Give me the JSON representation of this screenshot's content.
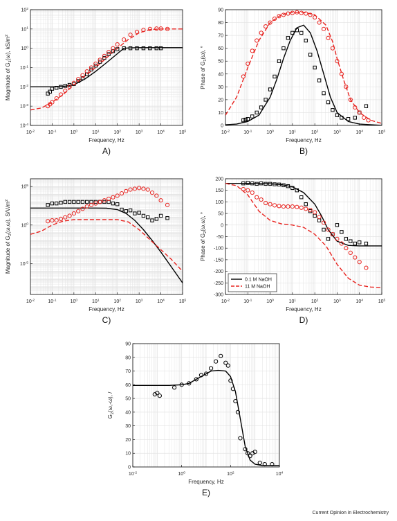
{
  "colors": {
    "black": "#000000",
    "red": "#e8231f",
    "grid": "#e3e3e3",
    "frame": "#000000"
  },
  "credit": "Current Opinion in Electrochemistry",
  "chart_data": [
    {
      "id": "A",
      "panel_label": "A)",
      "type": "scatter",
      "xlabel": "Frequency, Hz",
      "ylabel": "Magnitude of G_1(ω), kS/m^2",
      "xscale": "log",
      "yscale": "log",
      "xlim": [
        -2,
        5
      ],
      "ylim": [
        -4,
        2
      ],
      "xticks": [
        "10^-2",
        "10^-1",
        "10^0",
        "10^1",
        "10^2",
        "10^3",
        "10^4",
        "10^5"
      ],
      "yticks": [
        "10^-4",
        "10^-3",
        "10^-2",
        "10^-1",
        "10^0",
        "10^1",
        "10^2"
      ],
      "series": [
        {
          "role": "fit",
          "color": "black",
          "dash": "solid",
          "x": [
            -2,
            -1,
            -0.5,
            0,
            0.5,
            1,
            1.5,
            2,
            2.3,
            2.6,
            3,
            4,
            5
          ],
          "y": [
            -2,
            -2,
            -1.98,
            -1.9,
            -1.6,
            -1.2,
            -0.75,
            -0.28,
            0,
            0.02,
            0.03,
            0.03,
            0.03
          ]
        },
        {
          "role": "fit",
          "color": "red",
          "dash": "dashed",
          "x": [
            -2,
            -1.5,
            -1,
            -0.5,
            0,
            0.5,
            1,
            1.5,
            2,
            2.5,
            3,
            3.5,
            4,
            4.5,
            5
          ],
          "y": [
            -3.2,
            -3.1,
            -2.8,
            -2.4,
            -1.9,
            -1.45,
            -1,
            -0.5,
            0,
            0.45,
            0.8,
            0.97,
            1,
            1,
            1
          ]
        },
        {
          "role": "data",
          "color": "black",
          "marker": "square",
          "x": [
            -1.2,
            -1.1,
            -1,
            -0.8,
            -0.6,
            -0.4,
            -0.2,
            0,
            0.2,
            0.4,
            0.6,
            0.8,
            1,
            1.2,
            1.4,
            1.6,
            1.8,
            2,
            2.3,
            2.6,
            2.9,
            3.2,
            3.5,
            3.8,
            4
          ],
          "y": [
            -2.35,
            -2.25,
            -2.1,
            -2.05,
            -2,
            -1.95,
            -1.9,
            -1.85,
            -1.7,
            -1.55,
            -1.35,
            -1.1,
            -0.9,
            -0.7,
            -0.5,
            -0.3,
            -0.15,
            -0.05,
            0,
            0,
            0,
            0,
            0,
            0,
            0
          ]
        },
        {
          "role": "data",
          "color": "red",
          "marker": "circle",
          "x": [
            -1.2,
            -1.1,
            -1,
            -0.8,
            -0.6,
            -0.4,
            -0.2,
            0,
            0.2,
            0.4,
            0.6,
            0.8,
            1,
            1.2,
            1.4,
            1.6,
            1.8,
            2,
            2.3,
            2.6,
            2.9,
            3.2,
            3.5,
            3.8,
            4,
            4.3
          ],
          "y": [
            -3,
            -2.9,
            -2.8,
            -2.6,
            -2.4,
            -2.2,
            -2,
            -1.8,
            -1.6,
            -1.4,
            -1.2,
            -1,
            -0.8,
            -0.6,
            -0.4,
            -0.2,
            0,
            0.2,
            0.45,
            0.7,
            0.85,
            0.95,
            1,
            1.02,
            1.02,
            1
          ]
        }
      ]
    },
    {
      "id": "B",
      "panel_label": "B)",
      "type": "scatter",
      "xlabel": "Frequency, Hz",
      "ylabel": "Phase of G_1(ω), °",
      "xscale": "log",
      "yscale": "linear",
      "xlim": [
        -2,
        5
      ],
      "ylim": [
        0,
        90
      ],
      "xticks": [
        "10^-2",
        "10^-1",
        "10^0",
        "10^1",
        "10^2",
        "10^3",
        "10^4",
        "10^5"
      ],
      "yticks": [
        "0",
        "10",
        "20",
        "30",
        "40",
        "50",
        "60",
        "70",
        "80",
        "90"
      ],
      "series": [
        {
          "role": "fit",
          "color": "black",
          "dash": "solid",
          "x": [
            -2,
            -1.5,
            -1,
            -0.5,
            0,
            0.3,
            0.6,
            0.9,
            1.2,
            1.5,
            1.8,
            2.1,
            2.4,
            2.7,
            3,
            3.5,
            4,
            5
          ],
          "y": [
            0.5,
            1,
            3,
            8,
            22,
            36,
            52,
            66,
            76,
            78,
            72,
            58,
            40,
            22,
            10,
            3,
            1,
            0
          ]
        },
        {
          "role": "fit",
          "color": "red",
          "dash": "dashed",
          "x": [
            -2,
            -1.5,
            -1,
            -0.5,
            0,
            0.5,
            1,
            1.5,
            2,
            2.5,
            2.8,
            3,
            3.3,
            3.6,
            4,
            4.5,
            5
          ],
          "y": [
            8,
            22,
            45,
            66,
            80,
            86,
            88,
            88,
            86,
            78,
            65,
            52,
            35,
            20,
            10,
            4,
            1.5
          ]
        },
        {
          "role": "data",
          "color": "black",
          "marker": "square",
          "x": [
            -1.2,
            -1.1,
            -1,
            -0.8,
            -0.6,
            -0.4,
            -0.2,
            0,
            0.2,
            0.4,
            0.6,
            0.8,
            1,
            1.2,
            1.4,
            1.6,
            1.8,
            2,
            2.2,
            2.4,
            2.6,
            2.8,
            3,
            3.2,
            3.5,
            3.8,
            4,
            4.3
          ],
          "y": [
            4,
            4.5,
            5,
            7,
            10,
            14,
            20,
            28,
            38,
            50,
            60,
            68,
            72,
            74,
            72,
            66,
            55,
            45,
            35,
            25,
            18,
            12,
            8,
            6,
            5,
            6,
            10,
            15
          ]
        },
        {
          "role": "data",
          "color": "red",
          "marker": "circle",
          "x": [
            -1.2,
            -1,
            -0.8,
            -0.6,
            -0.4,
            -0.2,
            0,
            0.2,
            0.4,
            0.6,
            0.8,
            1,
            1.2,
            1.4,
            1.6,
            1.8,
            2,
            2.2,
            2.4,
            2.6,
            2.8,
            3,
            3.2,
            3.4,
            3.6,
            3.8,
            4,
            4.2,
            4.4
          ],
          "y": [
            38,
            48,
            58,
            66,
            72,
            77,
            80,
            83,
            85,
            86,
            87,
            87.5,
            88,
            87.5,
            87,
            86,
            84,
            80,
            75,
            68,
            60,
            50,
            40,
            30,
            20,
            14,
            10,
            6,
            4
          ]
        }
      ]
    },
    {
      "id": "C",
      "panel_label": "C)",
      "type": "scatter",
      "xlabel": "Frequency, Hz",
      "ylabel": "Magnitude of G_2(ω,ω), S/V/m^2",
      "xscale": "log",
      "yscale": "log",
      "xlim": [
        -2,
        5
      ],
      "ylim": [
        -9,
        6
      ],
      "xticks": [
        "10^-2",
        "10^-1",
        "10^0",
        "10^1",
        "10^2",
        "10^3",
        "10^4",
        "10^5"
      ],
      "yticks": [
        "10^-5",
        "10^0",
        "10^5"
      ],
      "series": [
        {
          "role": "fit",
          "color": "black",
          "dash": "solid",
          "x": [
            -2,
            -1,
            0,
            1,
            1.5,
            2,
            2.4,
            2.8,
            3.2,
            3.6,
            4,
            4.5,
            5
          ],
          "y": [
            2.2,
            2.2,
            2.2,
            2.2,
            2.18,
            2,
            1.5,
            0.6,
            -0.6,
            -2,
            -3.5,
            -5.5,
            -7.5
          ]
        },
        {
          "role": "fit",
          "color": "red",
          "dash": "dashed",
          "x": [
            -2,
            -1.5,
            -1,
            -0.5,
            0,
            1,
            2,
            2.5,
            3,
            3.5,
            4,
            4.5,
            5
          ],
          "y": [
            -1.2,
            -0.8,
            0,
            0.5,
            0.7,
            0.7,
            0.7,
            0.4,
            -0.6,
            -1.9,
            -3.2,
            -4.5,
            -6
          ]
        },
        {
          "role": "data",
          "color": "black",
          "marker": "square",
          "x": [
            -1.2,
            -1,
            -0.8,
            -0.6,
            -0.4,
            -0.2,
            0,
            0.2,
            0.4,
            0.6,
            0.8,
            1,
            1.2,
            1.4,
            1.6,
            1.8,
            2,
            2.2,
            2.4,
            2.6,
            2.8,
            3,
            3.2,
            3.4,
            3.6,
            3.8,
            4,
            4.3
          ],
          "y": [
            2.6,
            2.8,
            2.8,
            2.9,
            3,
            3,
            3,
            3,
            3,
            3,
            3,
            3,
            3,
            3,
            3,
            2.8,
            2.7,
            2,
            1.8,
            1.9,
            1.5,
            1.6,
            1.2,
            1,
            0.6,
            0.8,
            1.2,
            0.9
          ]
        },
        {
          "role": "data",
          "color": "red",
          "marker": "circle",
          "x": [
            -1.2,
            -1,
            -0.8,
            -0.6,
            -0.4,
            -0.2,
            0,
            0.2,
            0.4,
            0.6,
            0.8,
            1,
            1.2,
            1.4,
            1.6,
            1.8,
            2,
            2.2,
            2.4,
            2.6,
            2.8,
            3,
            3.2,
            3.4,
            3.6,
            3.8,
            4,
            4.3
          ],
          "y": [
            0.5,
            0.6,
            0.6,
            0.8,
            1,
            1.2,
            1.5,
            1.8,
            2.1,
            2.4,
            2.6,
            2.8,
            3,
            3.2,
            3.4,
            3.6,
            3.8,
            4.1,
            4.4,
            4.6,
            4.7,
            4.8,
            4.7,
            4.6,
            4.2,
            3.8,
            3.2,
            2.6
          ]
        }
      ]
    },
    {
      "id": "D",
      "panel_label": "D)",
      "type": "scatter",
      "xlabel": "Frequency, Hz",
      "ylabel": "Phase of G_2(ω,ω), °",
      "xscale": "log",
      "yscale": "linear",
      "xlim": [
        -2,
        5
      ],
      "ylim": [
        -300,
        200
      ],
      "xticks": [
        "10^-2",
        "10^-1",
        "10^0",
        "10^1",
        "10^2",
        "10^3",
        "10^4",
        "10^5"
      ],
      "yticks": [
        "-300",
        "-250",
        "-200",
        "-150",
        "-100",
        "-50",
        "0",
        "50",
        "100",
        "150",
        "200"
      ],
      "legend": {
        "position": "bottom-left",
        "entries": [
          {
            "label": "0.1 M NaOH",
            "color": "black",
            "dash": "solid"
          },
          {
            "label": "11 M NaOH",
            "color": "red",
            "dash": "dashed"
          }
        ]
      },
      "series": [
        {
          "role": "fit",
          "color": "black",
          "dash": "solid",
          "x": [
            -2,
            -1,
            0,
            0.5,
            1,
            1.5,
            2,
            2.3,
            2.6,
            3,
            3.5,
            4,
            5
          ],
          "y": [
            180,
            180,
            178,
            175,
            165,
            140,
            90,
            40,
            -20,
            -70,
            -88,
            -90,
            -90
          ]
        },
        {
          "role": "fit",
          "color": "red",
          "dash": "dashed",
          "x": [
            -2,
            -1.5,
            -1,
            -0.5,
            0,
            0.5,
            1,
            1.5,
            2,
            2.5,
            3,
            3.5,
            4,
            4.5,
            5
          ],
          "y": [
            180,
            170,
            130,
            60,
            20,
            5,
            0,
            -10,
            -40,
            -90,
            -170,
            -230,
            -260,
            -268,
            -270
          ]
        },
        {
          "role": "data",
          "color": "black",
          "marker": "square",
          "x": [
            -1.2,
            -1,
            -0.8,
            -0.6,
            -0.4,
            -0.2,
            0,
            0.2,
            0.4,
            0.6,
            0.8,
            1,
            1.2,
            1.4,
            1.6,
            1.8,
            2,
            2.2,
            2.4,
            2.6,
            2.8,
            3,
            3.2,
            3.4,
            3.6,
            3.8,
            4,
            4.3
          ],
          "y": [
            180,
            182,
            180,
            178,
            180,
            178,
            178,
            176,
            175,
            172,
            168,
            160,
            150,
            120,
            90,
            60,
            40,
            20,
            -20,
            -60,
            -40,
            0,
            -30,
            -60,
            -70,
            -80,
            -75,
            -80
          ]
        },
        {
          "role": "data",
          "color": "red",
          "marker": "circle",
          "x": [
            -1.2,
            -1,
            -0.8,
            -0.6,
            -0.4,
            -0.2,
            0,
            0.2,
            0.4,
            0.6,
            0.8,
            1,
            1.2,
            1.4,
            1.6,
            1.8,
            2,
            2.2,
            2.4,
            2.6,
            2.8,
            3,
            3.2,
            3.4,
            3.6,
            3.8,
            4,
            4.3
          ],
          "y": [
            155,
            150,
            140,
            120,
            110,
            95,
            90,
            85,
            82,
            80,
            80,
            80,
            78,
            75,
            70,
            65,
            55,
            35,
            10,
            -20,
            -40,
            -60,
            -80,
            -100,
            -120,
            -140,
            -160,
            -185
          ]
        }
      ]
    },
    {
      "id": "E",
      "panel_label": "E)",
      "type": "scatter",
      "xlabel": "Frequency, Hz",
      "ylabel": "G_2(ω,-ω), /",
      "xscale": "log",
      "yscale": "linear",
      "xlim": [
        -2,
        4
      ],
      "ylim": [
        0,
        90
      ],
      "xticks": [
        "10^-2",
        "10^0",
        "10^2",
        "10^4"
      ],
      "yticks": [
        "0",
        "10",
        "20",
        "30",
        "40",
        "50",
        "60",
        "70",
        "80",
        "90"
      ],
      "series": [
        {
          "role": "fit",
          "color": "black",
          "dash": "solid",
          "x": [
            -2,
            -1,
            -0.5,
            0,
            0.3,
            0.6,
            0.9,
            1.2,
            1.5,
            1.8,
            2,
            2.2,
            2.4,
            2.6,
            2.8,
            3,
            3.3,
            3.6,
            4
          ],
          "y": [
            59.5,
            59.5,
            59.5,
            60,
            61,
            64,
            67,
            70,
            70.5,
            70,
            66,
            55,
            35,
            15,
            5,
            2,
            1,
            1,
            1
          ]
        },
        {
          "role": "data",
          "color": "black",
          "marker": "circle",
          "x": [
            -1.1,
            -1,
            -0.9,
            -0.3,
            0,
            0.3,
            0.6,
            0.8,
            1,
            1.2,
            1.4,
            1.6,
            1.8,
            1.9,
            2,
            2.1,
            2.2,
            2.3,
            2.4,
            2.6,
            2.7,
            2.8,
            2.9,
            3,
            3.2,
            3.4,
            3.7
          ],
          "y": [
            53,
            54,
            52,
            58,
            60,
            61,
            64,
            67,
            68,
            72,
            77,
            81,
            76,
            74,
            63,
            57,
            48,
            40,
            21,
            13,
            10,
            8,
            10,
            11,
            3,
            2,
            2
          ]
        }
      ]
    }
  ]
}
